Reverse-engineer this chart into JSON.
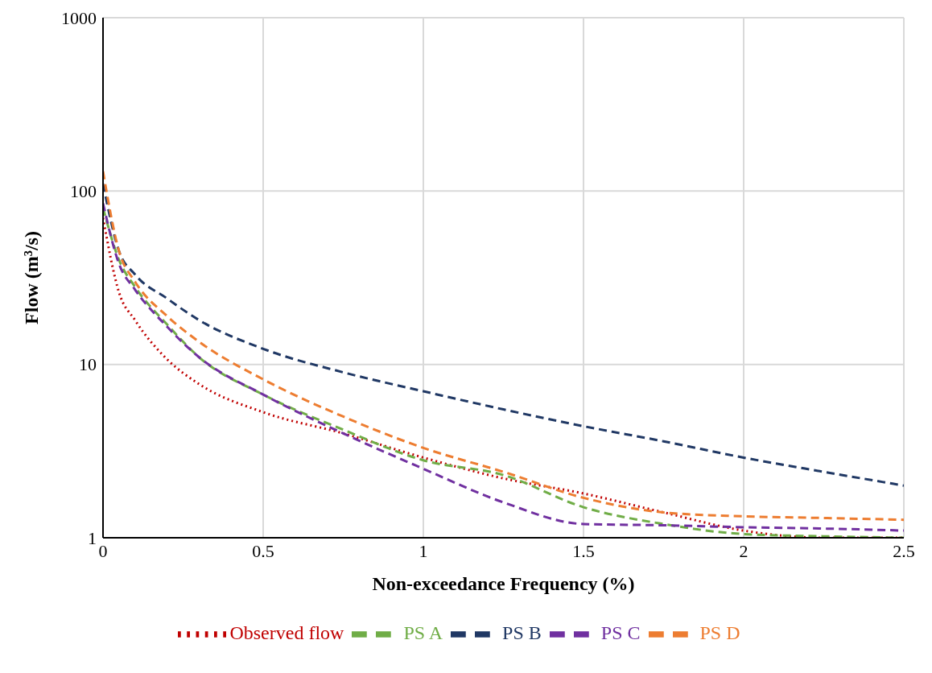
{
  "chart_data": {
    "type": "line",
    "xlabel": "Non-exceedance Frequency (%)",
    "ylabel": "Flow (m³/s)",
    "x": [
      0,
      0.05,
      0.1,
      0.2,
      0.3,
      0.5,
      0.75,
      1,
      1.25,
      1.5,
      1.75,
      2,
      2.25,
      2.5
    ],
    "series": [
      {
        "name": "Observed flow",
        "color": "#c00000",
        "line_style": "dotted",
        "values": [
          70,
          26,
          18,
          10.7,
          7.7,
          5.3,
          4.0,
          2.9,
          2.2,
          1.8,
          1.4,
          1.1,
          1.0,
          1.0
        ]
      },
      {
        "name": "PS A",
        "color": "#70ad47",
        "line_style": "dashed",
        "values": [
          80,
          40,
          28,
          17,
          11,
          6.7,
          4.2,
          2.8,
          2.3,
          1.5,
          1.2,
          1.05,
          1.02,
          1.0
        ]
      },
      {
        "name": "PS B",
        "color": "#203864",
        "line_style": "dashed",
        "values": [
          110,
          45,
          33,
          24,
          18,
          12.3,
          9,
          7,
          5.5,
          4.4,
          3.6,
          2.9,
          2.4,
          2.0
        ]
      },
      {
        "name": "PS C",
        "color": "#7030a0",
        "line_style": "dashed",
        "values": [
          85,
          38,
          27,
          16.5,
          11,
          6.7,
          4.0,
          2.5,
          1.6,
          1.2,
          1.18,
          1.15,
          1.13,
          1.1
        ]
      },
      {
        "name": "PS D",
        "color": "#ed7d31",
        "line_style": "dashed",
        "values": [
          130,
          45,
          30,
          19,
          13.5,
          8.2,
          5,
          3.3,
          2.4,
          1.7,
          1.4,
          1.33,
          1.3,
          1.27
        ]
      }
    ],
    "xlim": [
      0,
      2.5
    ],
    "xticks": [
      0,
      0.5,
      1,
      1.5,
      2,
      2.5
    ],
    "ylim": [
      1,
      1000
    ],
    "yticks": [
      1,
      10,
      100,
      1000
    ],
    "log": "y",
    "grid": true,
    "legend": "bottom",
    "marker": "none"
  }
}
